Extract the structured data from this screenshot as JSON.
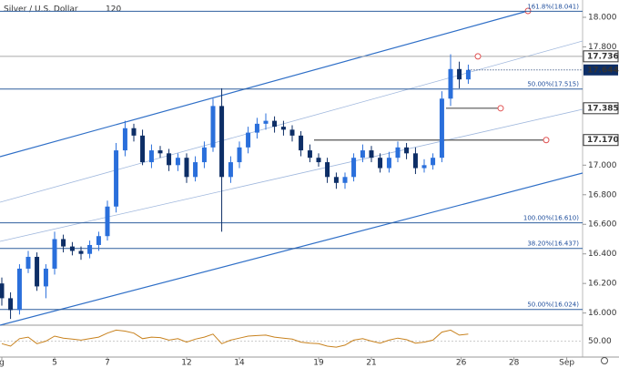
{
  "chart_data": {
    "type": "candlestick",
    "title": "Silver / U.S. Dollar",
    "interval": "120",
    "up_color": "#2a6fdb",
    "down_color": "#0d2e66",
    "x": [
      0,
      0.33,
      0.67,
      1,
      1.33,
      1.67,
      2,
      2.33,
      2.67,
      3,
      3.33,
      3.67,
      4,
      4.33,
      4.67,
      5,
      5.33,
      5.67,
      6,
      6.33,
      6.67,
      7,
      7.33,
      7.67,
      8,
      8.33,
      8.67,
      9,
      9.33,
      9.67,
      10,
      10.33,
      10.67,
      11,
      11.33,
      11.67,
      12,
      12.33,
      12.67,
      13,
      13.33,
      13.67,
      14,
      14.33,
      14.67,
      15,
      15.33,
      15.67,
      16,
      16.33,
      16.67,
      17,
      17.33,
      17.67
    ],
    "open": [
      16.2,
      16.1,
      16.02,
      16.3,
      16.38,
      16.18,
      16.3,
      16.5,
      16.45,
      16.42,
      16.4,
      16.46,
      16.52,
      16.72,
      17.1,
      17.25,
      17.2,
      17.02,
      17.1,
      17.08,
      17.0,
      17.05,
      16.92,
      17.02,
      17.12,
      17.4,
      16.92,
      17.02,
      17.12,
      17.22,
      17.28,
      17.3,
      17.26,
      17.24,
      17.2,
      17.1,
      17.05,
      17.02,
      16.92,
      16.88,
      16.92,
      17.05,
      17.1,
      17.05,
      16.98,
      17.05,
      17.12,
      17.08,
      16.98,
      17.0,
      17.05,
      17.45,
      17.65,
      17.58
    ],
    "high": [
      16.24,
      16.14,
      16.33,
      16.42,
      16.41,
      16.33,
      16.55,
      16.53,
      16.48,
      16.45,
      16.49,
      16.55,
      16.76,
      17.15,
      17.3,
      17.28,
      17.24,
      17.14,
      17.13,
      17.11,
      17.08,
      17.08,
      17.06,
      17.16,
      17.45,
      17.52,
      17.06,
      17.16,
      17.26,
      17.32,
      17.35,
      17.33,
      17.3,
      17.27,
      17.23,
      17.14,
      17.08,
      17.05,
      16.95,
      16.95,
      17.08,
      17.14,
      17.13,
      17.08,
      17.09,
      17.16,
      17.15,
      17.12,
      17.04,
      17.08,
      17.5,
      17.75,
      17.7,
      17.68
    ],
    "low": [
      16.05,
      15.96,
      15.99,
      16.27,
      16.15,
      16.1,
      16.26,
      16.41,
      16.39,
      16.36,
      16.37,
      16.42,
      16.49,
      16.68,
      17.06,
      17.16,
      17.0,
      16.98,
      17.05,
      16.96,
      16.96,
      16.88,
      16.89,
      16.98,
      17.09,
      16.55,
      16.88,
      16.98,
      17.08,
      17.18,
      17.24,
      17.22,
      17.2,
      17.16,
      17.06,
      17.02,
      16.99,
      16.88,
      16.84,
      16.84,
      16.89,
      17.02,
      17.02,
      16.95,
      16.95,
      17.02,
      17.04,
      16.94,
      16.95,
      16.97,
      17.02,
      17.4,
      17.52,
      17.55
    ],
    "close": [
      16.1,
      16.02,
      16.3,
      16.38,
      16.18,
      16.3,
      16.5,
      16.45,
      16.42,
      16.4,
      16.46,
      16.52,
      16.72,
      17.1,
      17.25,
      17.2,
      17.02,
      17.1,
      17.08,
      17.0,
      17.05,
      16.92,
      17.02,
      17.12,
      17.4,
      16.92,
      17.02,
      17.12,
      17.22,
      17.28,
      17.3,
      17.26,
      17.24,
      17.2,
      17.1,
      17.05,
      17.02,
      16.92,
      16.88,
      16.92,
      17.05,
      17.1,
      17.05,
      16.98,
      17.05,
      17.12,
      17.08,
      16.98,
      17.0,
      17.05,
      17.45,
      17.65,
      17.58,
      17.644
    ],
    "xlim": [
      -0.069,
      22
    ],
    "xticks": [
      {
        "value": 0,
        "label": "g"
      },
      {
        "value": 2,
        "label": "5"
      },
      {
        "value": 4,
        "label": "7"
      },
      {
        "value": 7,
        "label": "12"
      },
      {
        "value": 9,
        "label": "14"
      },
      {
        "value": 12,
        "label": "19"
      },
      {
        "value": 14,
        "label": "21"
      },
      {
        "value": 17.4,
        "label": "26"
      },
      {
        "value": 19.4,
        "label": "28"
      },
      {
        "value": 21.4,
        "label": "Sep"
      }
    ],
    "ylim": [
      15.93,
      18.117
    ],
    "yticks": [
      {
        "value": 18,
        "label": "18.000"
      },
      {
        "value": 17.8,
        "label": "17.800"
      },
      {
        "value": 17,
        "label": "17.000"
      },
      {
        "value": 16.8,
        "label": "16.800"
      },
      {
        "value": 16.6,
        "label": "16.600"
      },
      {
        "value": 16.4,
        "label": "16.400"
      },
      {
        "value": 16.2,
        "label": "16.200"
      },
      {
        "value": 16,
        "label": "16.000"
      }
    ],
    "levels": [
      {
        "value": 18.041,
        "label": "161.8%(18.041)"
      },
      {
        "value": 17.515,
        "label": "50.00%(17.515)"
      },
      {
        "value": 16.61,
        "label": "100.00%(16.610)"
      },
      {
        "value": 16.437,
        "label": "38.20%(16.437)"
      },
      {
        "value": 16.024,
        "label": "50.00%(16.024)"
      }
    ],
    "price_lines": [
      {
        "value": 17.736,
        "label": "17.736"
      },
      {
        "value": 17.385,
        "label": "17.385"
      },
      {
        "value": 17.17,
        "label": "17.170"
      }
    ],
    "last_price": 17.644,
    "rsi": {
      "color": "#c8821e",
      "ylim": [
        20,
        80
      ],
      "yticks": [
        {
          "value": 50,
          "label": "50.00"
        }
      ],
      "values": [
        45,
        40,
        55,
        58,
        45,
        50,
        60,
        56,
        54,
        52,
        55,
        58,
        66,
        72,
        70,
        66,
        55,
        58,
        57,
        52,
        55,
        48,
        54,
        58,
        64,
        45,
        52,
        56,
        60,
        61,
        62,
        58,
        56,
        54,
        48,
        46,
        45,
        40,
        38,
        42,
        52,
        55,
        50,
        46,
        52,
        56,
        53,
        46,
        48,
        52,
        68,
        72,
        62,
        64
      ]
    }
  }
}
